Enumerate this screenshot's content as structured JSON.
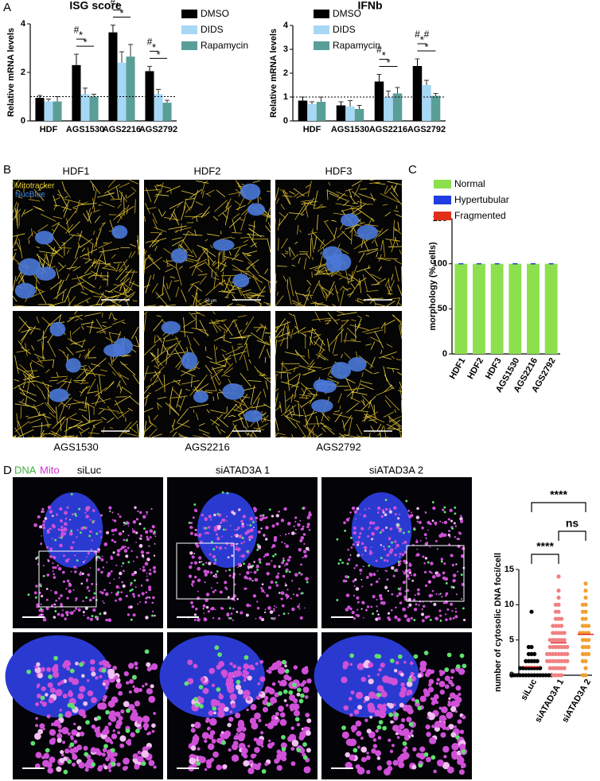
{
  "panel_labels": [
    "A",
    "B",
    "C",
    "D"
  ],
  "images_B": {
    "titles": [
      "HDF1",
      "HDF2",
      "HDF3"
    ],
    "captions": [
      "AGS1530",
      "AGS2216",
      "AGS2792"
    ],
    "stains": [
      "Mitotracker",
      "NucBlue"
    ],
    "scale": "50 µm"
  },
  "images_D": {
    "stains": [
      "DNA",
      "Mito"
    ],
    "titles": [
      "siLuc",
      "siATAD3A 1",
      "siATAD3A 2"
    ]
  },
  "chart_data": [
    {
      "type": "bar",
      "title": "ISG score",
      "ylabel": "Relative mRNA levels",
      "categories": [
        "HDF",
        "AGS1530",
        "AGS2216",
        "AGS2792"
      ],
      "series": [
        {
          "name": "DMSO",
          "color": "#000000",
          "values": [
            0.95,
            2.3,
            3.65,
            2.05
          ],
          "errors": [
            0.1,
            0.45,
            0.3,
            0.2
          ]
        },
        {
          "name": "DIDS",
          "color": "#a6d8f5",
          "values": [
            0.8,
            1.1,
            2.4,
            1.1
          ],
          "errors": [
            0.1,
            0.25,
            0.45,
            0.2
          ]
        },
        {
          "name": "Rapamycin",
          "color": "#5a9e98",
          "values": [
            0.8,
            1.0,
            2.65,
            0.75
          ],
          "errors": [
            0.2,
            0.1,
            0.5,
            0.1
          ]
        }
      ],
      "ylim": [
        0,
        4
      ],
      "yticks": [
        0,
        2,
        4
      ],
      "reference_line": 1,
      "annotations": [
        {
          "text": "#",
          "category": 1,
          "series": [
            0
          ]
        },
        {
          "text": "*",
          "category": 1,
          "series": [
            0,
            1
          ]
        },
        {
          "text": "*",
          "category": 1,
          "series": [
            0,
            2
          ]
        },
        {
          "text": "#",
          "category": 2,
          "series": [
            0
          ]
        },
        {
          "text": "*",
          "category": 2,
          "series": [
            0,
            1
          ]
        },
        {
          "text": "*",
          "category": 2,
          "series": [
            0,
            2
          ]
        },
        {
          "text": "#",
          "category": 3,
          "series": [
            0
          ]
        },
        {
          "text": "*",
          "category": 3,
          "series": [
            0,
            1
          ]
        },
        {
          "text": "*",
          "category": 3,
          "series": [
            0,
            2
          ]
        }
      ]
    },
    {
      "type": "bar",
      "title": "IFNb",
      "ylabel": "Relative mRNA levels",
      "categories": [
        "HDF",
        "AGS1530",
        "AGS2216",
        "AGS2792"
      ],
      "series": [
        {
          "name": "DMSO",
          "color": "#000000",
          "values": [
            0.85,
            0.65,
            1.65,
            2.3
          ],
          "errors": [
            0.15,
            0.15,
            0.3,
            0.3
          ]
        },
        {
          "name": "DIDS",
          "color": "#a6d8f5",
          "values": [
            0.7,
            0.6,
            1.0,
            1.5
          ],
          "errors": [
            0.1,
            0.25,
            0.25,
            0.2
          ]
        },
        {
          "name": "Rapamycin",
          "color": "#5a9e98",
          "values": [
            0.8,
            0.5,
            1.15,
            1.05
          ],
          "errors": [
            0.2,
            0.15,
            0.25,
            0.1
          ]
        }
      ],
      "ylim": [
        0,
        4
      ],
      "yticks": [
        0,
        1,
        2,
        3,
        4
      ],
      "reference_line": 1,
      "annotations": [
        {
          "text": "#",
          "category": 2,
          "series": [
            0
          ]
        },
        {
          "text": "*",
          "category": 2,
          "series": [
            0,
            1
          ]
        },
        {
          "text": "*",
          "category": 2,
          "series": [
            0,
            2
          ]
        },
        {
          "text": "#",
          "category": 3,
          "series": [
            0
          ]
        },
        {
          "text": "#",
          "category": 3,
          "series": [
            1
          ]
        },
        {
          "text": "*",
          "category": 3,
          "series": [
            0,
            1
          ]
        },
        {
          "text": "*",
          "category": 3,
          "series": [
            0,
            2
          ]
        }
      ]
    },
    {
      "type": "stacked_bar",
      "ylabel": "morphology (% cells)",
      "categories": [
        "HDF1",
        "HDF2",
        "HDF3",
        "AGS1530",
        "AGS2216",
        "AGS2792"
      ],
      "series": [
        {
          "name": "Normal",
          "color": "#8de04d",
          "values": [
            100,
            100,
            100,
            100,
            100,
            100
          ]
        },
        {
          "name": "Hypertubular",
          "color": "#1f3de0",
          "values": [
            0,
            0,
            0,
            0,
            0,
            0
          ]
        },
        {
          "name": "Fragmented",
          "color": "#e0301a",
          "values": [
            0,
            0,
            0,
            0,
            0,
            0
          ]
        }
      ],
      "ylim": [
        0,
        150
      ],
      "yticks": [
        0,
        50,
        100,
        150
      ]
    },
    {
      "type": "strip",
      "ylabel": "number of cytosolic DNA foci/cell",
      "categories": [
        "siLuc",
        "siATAD3A 1",
        "siATAD3A 2"
      ],
      "series": [
        {
          "name": "siLuc",
          "color": "#000000",
          "mean": 1.2,
          "values": [
            0,
            0,
            0,
            0,
            0,
            0,
            0,
            0,
            0,
            0,
            0,
            0,
            0,
            0,
            0,
            1,
            1,
            1,
            1,
            1,
            1,
            1,
            1,
            2,
            2,
            2,
            2,
            2,
            3,
            3,
            3,
            4,
            4,
            9
          ]
        },
        {
          "name": "siATAD3A 1",
          "color": "#f08080",
          "mean": 4.6,
          "values": [
            0,
            0,
            0,
            0,
            1,
            1,
            1,
            1,
            1,
            1,
            2,
            2,
            2,
            2,
            2,
            2,
            2,
            2,
            3,
            3,
            3,
            3,
            3,
            3,
            3,
            3,
            4,
            4,
            4,
            4,
            4,
            4,
            4,
            5,
            5,
            5,
            5,
            5,
            5,
            6,
            6,
            6,
            6,
            6,
            7,
            7,
            7,
            7,
            8,
            8,
            8,
            9,
            9,
            10,
            10,
            11,
            12,
            14
          ]
        },
        {
          "name": "siATAD3A 2",
          "color": "#f0a030",
          "mean": 5.8,
          "values": [
            0,
            0,
            1,
            2,
            2,
            3,
            3,
            3,
            4,
            4,
            4,
            5,
            5,
            5,
            6,
            6,
            6,
            6,
            7,
            7,
            7,
            8,
            8,
            9,
            9,
            10,
            10,
            11,
            12,
            13
          ]
        }
      ],
      "ylim": [
        0,
        15
      ],
      "yticks": [
        0,
        5,
        10,
        15
      ],
      "significance": [
        {
          "text": "****",
          "groups": [
            0,
            2
          ]
        },
        {
          "text": "ns",
          "groups": [
            1,
            2
          ]
        },
        {
          "text": "****",
          "groups": [
            0,
            1
          ]
        }
      ]
    }
  ]
}
